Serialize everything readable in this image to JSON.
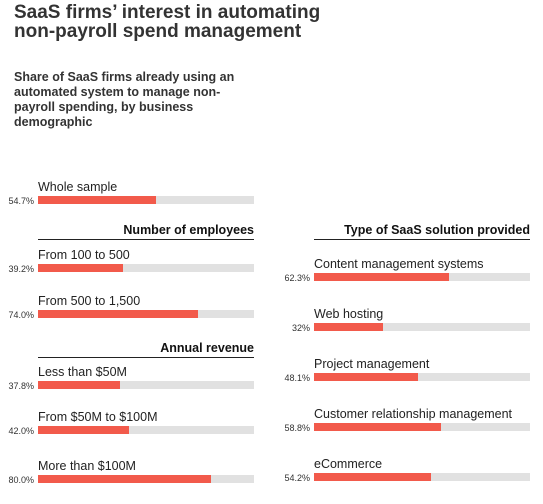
{
  "title": "SaaS firms’ interest in automating non-payroll spend management",
  "subtitle": "Share of SaaS firms already using an automated system to manage non-payroll spending, by business demographic",
  "colors": {
    "bar": "#f25a4b",
    "track": "#e1e1e1"
  },
  "chart_data": {
    "type": "bar",
    "orientation": "horizontal",
    "xlim": [
      0,
      100
    ],
    "groups": [
      {
        "header": "",
        "categories": [
          "Whole sample"
        ],
        "values": [
          54.7
        ],
        "labels": [
          "54.7%"
        ]
      },
      {
        "header": "Number of employees",
        "categories": [
          "From 100 to 500",
          "From 500 to 1,500"
        ],
        "values": [
          39.2,
          74.0
        ],
        "labels": [
          "39.2%",
          "74.0%"
        ]
      },
      {
        "header": "Annual revenue",
        "categories": [
          "Less than $50M",
          "From $50M to $100M",
          "More than $100M"
        ],
        "values": [
          37.8,
          42.0,
          80.0
        ],
        "labels": [
          "37.8%",
          "42.0%",
          "80.0%"
        ]
      },
      {
        "header": "Type of SaaS solution provided",
        "categories": [
          "Content management systems",
          "Web hosting",
          "Project management",
          "Customer relationship management",
          "eCommerce"
        ],
        "values": [
          62.3,
          32,
          48.1,
          58.8,
          54.2
        ],
        "labels": [
          "62.3%",
          "32%",
          "48.1%",
          "58.8%",
          "54.2%"
        ]
      }
    ]
  }
}
